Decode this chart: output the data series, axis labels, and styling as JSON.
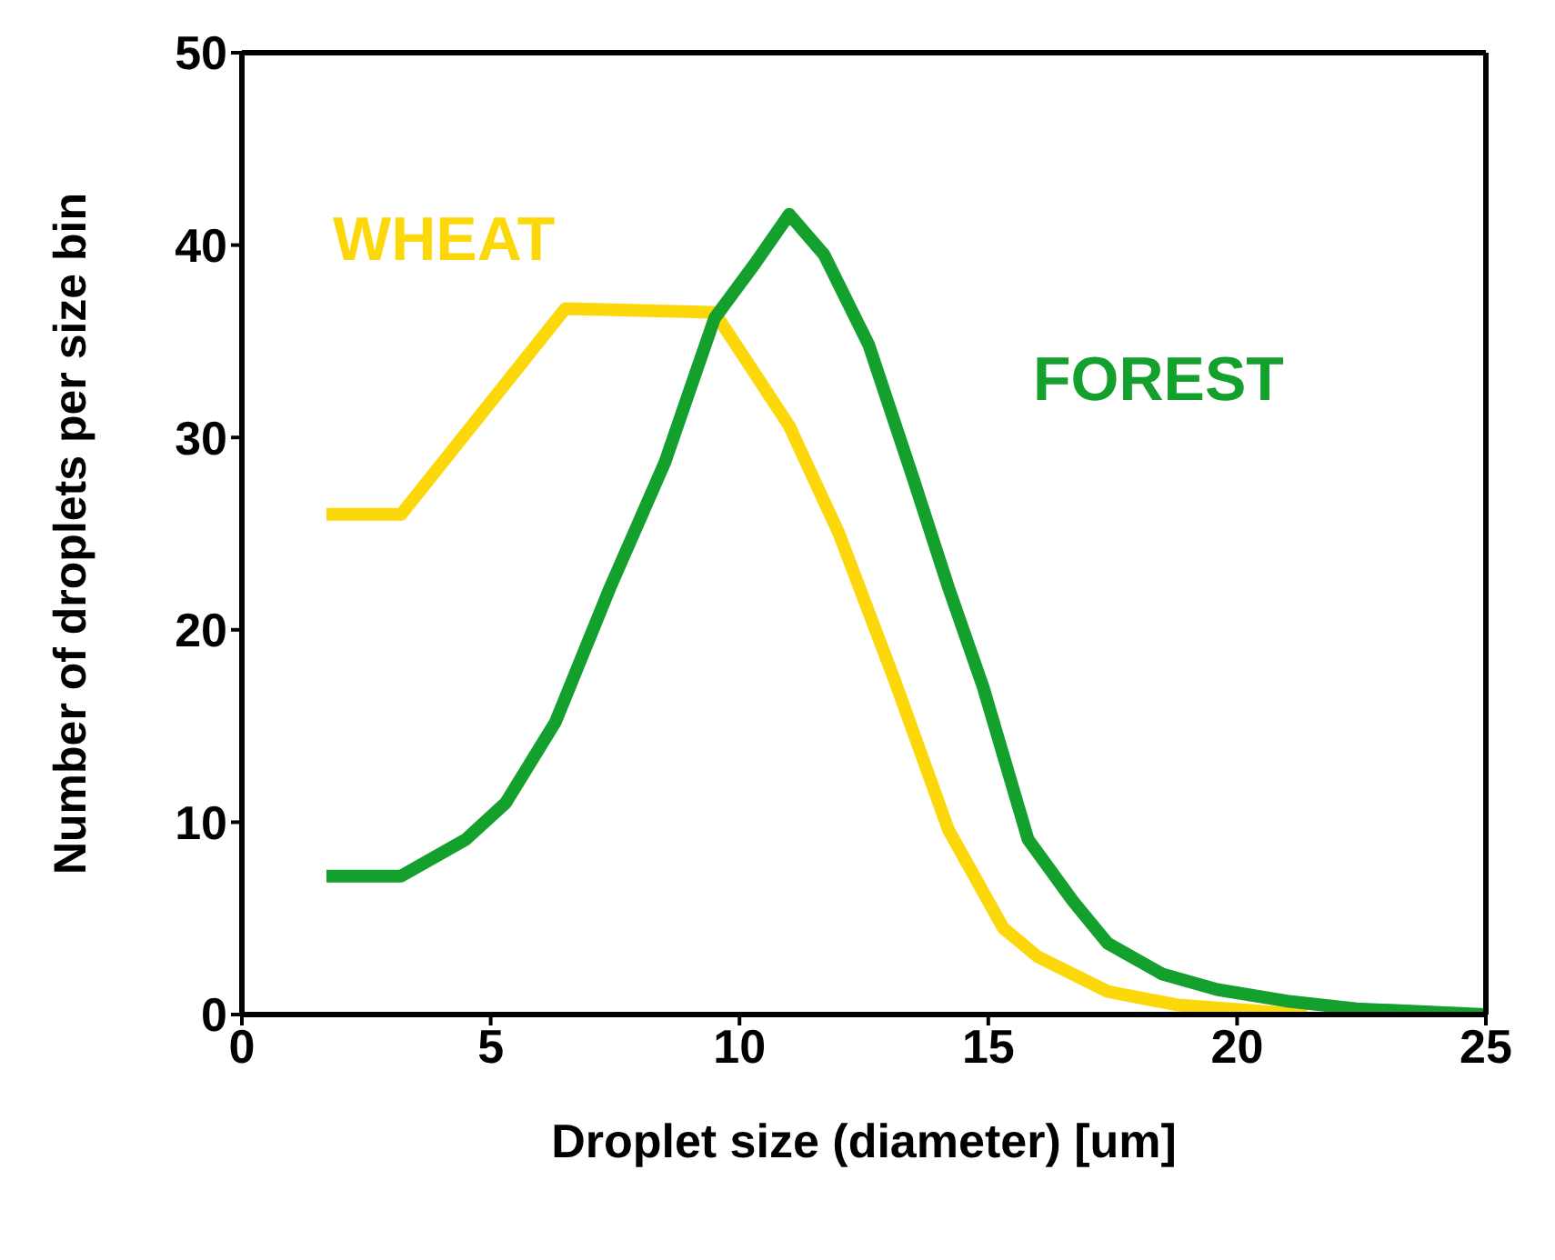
{
  "chart_data": {
    "type": "line",
    "xlabel": "Droplet size (diameter) [um]",
    "ylabel": "Number of droplets per size bin",
    "xlim": [
      0,
      25
    ],
    "xticks": [
      0,
      5,
      10,
      15,
      20,
      25
    ],
    "ylim": [
      0,
      50
    ],
    "yticks": [
      0,
      10,
      20,
      30,
      40,
      50
    ],
    "grid": false,
    "legend": false,
    "marker": "none",
    "line_style": "solid",
    "series": [
      {
        "name": "WHEAT",
        "color": "#fcd80a",
        "x": [
          1.7,
          3.2,
          6.5,
          9.5,
          11,
          12,
          13.1,
          14.2,
          15.3,
          16,
          17.4,
          18.8,
          21.4
        ],
        "values": [
          26,
          26,
          36.7,
          36.5,
          30.6,
          25,
          17.5,
          9.6,
          4.5,
          3,
          1.2,
          0.5,
          0
        ]
      },
      {
        "name": "FOREST",
        "color": "#13a02c",
        "x": [
          1.7,
          3.2,
          4.5,
          5.3,
          6.3,
          7.4,
          8.5,
          9.5,
          10.3,
          11,
          11.7,
          12.6,
          13.5,
          14.2,
          14.9,
          15.8,
          16.7,
          17.4,
          18.5,
          19.6,
          21,
          22.4,
          25
        ],
        "values": [
          7.2,
          7.2,
          9.1,
          11,
          15.2,
          22.2,
          28.7,
          36.2,
          39,
          41.6,
          39.5,
          34.8,
          27.8,
          22.2,
          17,
          9.1,
          5.9,
          3.7,
          2.1,
          1.3,
          0.7,
          0.3,
          0
        ]
      }
    ]
  }
}
